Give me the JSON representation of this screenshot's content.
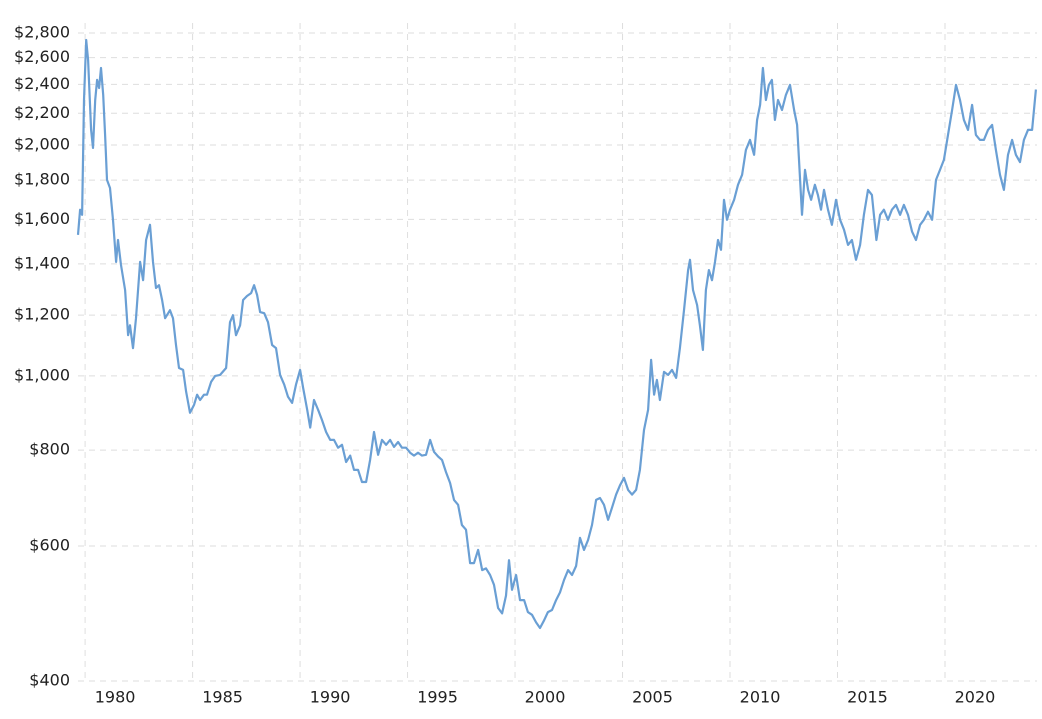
{
  "chart_data": {
    "type": "line",
    "log_y": true,
    "grid": true,
    "xlim": [
      1979.67,
      2024.28
    ],
    "xticks": [
      1980,
      1985,
      1990,
      1995,
      2000,
      2005,
      2010,
      2015,
      2020
    ],
    "ylim": [
      400,
      2800
    ],
    "yticks": [
      {
        "value": 400,
        "label": "$400"
      },
      {
        "value": 600,
        "label": "$600"
      },
      {
        "value": 800,
        "label": "$800"
      },
      {
        "value": 1000,
        "label": "$1,000"
      },
      {
        "value": 1200,
        "label": "$1,200"
      },
      {
        "value": 1400,
        "label": "$1,400"
      },
      {
        "value": 1600,
        "label": "$1,600"
      },
      {
        "value": 1800,
        "label": "$1,800"
      },
      {
        "value": 2000,
        "label": "$2,000"
      },
      {
        "value": 2200,
        "label": "$2,200"
      },
      {
        "value": 2400,
        "label": "$2,400"
      },
      {
        "value": 2600,
        "label": "$2,600"
      },
      {
        "value": 2800,
        "label": "$2,800"
      }
    ],
    "x": [
      1979.67,
      1979.77,
      1979.86,
      1979.95,
      1980.05,
      1980.14,
      1980.28,
      1980.37,
      1980.47,
      1980.56,
      1980.65,
      1980.74,
      1980.84,
      1980.93,
      1981.02,
      1981.16,
      1981.3,
      1981.44,
      1981.53,
      1981.67,
      1981.86,
      1982.0,
      1982.09,
      1982.23,
      1982.37,
      1982.56,
      1982.7,
      1982.84,
      1983.02,
      1983.16,
      1983.3,
      1983.44,
      1983.58,
      1983.72,
      1983.95,
      1984.09,
      1984.23,
      1984.37,
      1984.56,
      1984.7,
      1984.88,
      1985.07,
      1985.21,
      1985.35,
      1985.53,
      1985.67,
      1985.86,
      1986.05,
      1986.28,
      1986.56,
      1986.74,
      1986.88,
      1987.02,
      1987.21,
      1987.35,
      1987.53,
      1987.72,
      1987.86,
      1988.0,
      1988.14,
      1988.33,
      1988.51,
      1988.7,
      1988.88,
      1989.07,
      1989.26,
      1989.44,
      1989.63,
      1989.81,
      1990.0,
      1990.14,
      1990.33,
      1990.47,
      1990.65,
      1990.84,
      1991.02,
      1991.21,
      1991.4,
      1991.58,
      1991.77,
      1991.95,
      1992.14,
      1992.33,
      1992.51,
      1992.7,
      1992.88,
      1993.07,
      1993.26,
      1993.44,
      1993.63,
      1993.81,
      1994.0,
      1994.19,
      1994.37,
      1994.56,
      1994.74,
      1994.93,
      1995.12,
      1995.3,
      1995.49,
      1995.67,
      1995.86,
      1996.05,
      1996.23,
      1996.42,
      1996.6,
      1996.79,
      1996.98,
      1997.16,
      1997.35,
      1997.53,
      1997.72,
      1997.91,
      1998.09,
      1998.28,
      1998.47,
      1998.65,
      1998.84,
      1999.02,
      1999.21,
      1999.4,
      1999.58,
      1999.72,
      1999.86,
      2000.05,
      2000.23,
      2000.42,
      2000.6,
      2000.79,
      2000.98,
      2001.16,
      2001.35,
      2001.53,
      2001.72,
      2001.91,
      2002.09,
      2002.28,
      2002.47,
      2002.65,
      2002.84,
      2003.02,
      2003.21,
      2003.4,
      2003.58,
      2003.77,
      2003.95,
      2004.14,
      2004.33,
      2004.51,
      2004.7,
      2004.88,
      2005.07,
      2005.26,
      2005.44,
      2005.63,
      2005.81,
      2006.0,
      2006.19,
      2006.33,
      2006.47,
      2006.6,
      2006.74,
      2006.93,
      2007.12,
      2007.3,
      2007.49,
      2007.67,
      2007.86,
      2008.05,
      2008.14,
      2008.28,
      2008.47,
      2008.6,
      2008.74,
      2008.88,
      2009.02,
      2009.16,
      2009.3,
      2009.44,
      2009.58,
      2009.72,
      2009.86,
      2010.0,
      2010.19,
      2010.37,
      2010.56,
      2010.74,
      2010.93,
      2011.12,
      2011.26,
      2011.4,
      2011.53,
      2011.67,
      2011.81,
      2011.95,
      2012.09,
      2012.23,
      2012.42,
      2012.6,
      2012.79,
      2012.98,
      2013.12,
      2013.26,
      2013.35,
      2013.49,
      2013.63,
      2013.77,
      2013.95,
      2014.09,
      2014.23,
      2014.37,
      2014.56,
      2014.74,
      2014.93,
      2015.12,
      2015.3,
      2015.49,
      2015.67,
      2015.86,
      2016.05,
      2016.23,
      2016.42,
      2016.6,
      2016.81,
      2016.98,
      2017.16,
      2017.35,
      2017.53,
      2017.72,
      2017.91,
      2018.09,
      2018.28,
      2018.47,
      2018.65,
      2018.84,
      2019.02,
      2019.21,
      2019.4,
      2019.58,
      2019.77,
      2019.95,
      2020.14,
      2020.33,
      2020.51,
      2020.7,
      2020.88,
      2021.07,
      2021.26,
      2021.44,
      2021.63,
      2021.81,
      2022.0,
      2022.19,
      2022.37,
      2022.56,
      2022.74,
      2022.93,
      2023.12,
      2023.3,
      2023.49,
      2023.67,
      2023.86,
      2024.05,
      2024.23
    ],
    "series": [
      {
        "color": "#6a9fd4",
        "values": [
          1527,
          1647,
          1622,
          2290,
          2742,
          2582,
          2093,
          1983,
          2290,
          2432,
          2374,
          2521,
          2325,
          2062,
          1801,
          1758,
          1598,
          1408,
          1504,
          1395,
          1294,
          1130,
          1164,
          1087,
          1189,
          1408,
          1333,
          1504,
          1574,
          1408,
          1302,
          1313,
          1256,
          1189,
          1218,
          1189,
          1097,
          1024,
          1018,
          954,
          895,
          917,
          945,
          930,
          945,
          945,
          982,
          1000,
          1003,
          1024,
          1175,
          1200,
          1130,
          1164,
          1256,
          1271,
          1282,
          1313,
          1275,
          1211,
          1207,
          1175,
          1097,
          1087,
          1003,
          974,
          939,
          922,
          974,
          1018,
          965,
          903,
          856,
          930,
          903,
          876,
          845,
          825,
          825,
          806,
          813,
          772,
          787,
          754,
          754,
          727,
          727,
          777,
          845,
          789,
          825,
          813,
          825,
          808,
          820,
          806,
          806,
          794,
          787,
          794,
          787,
          789,
          825,
          796,
          785,
          777,
          749,
          725,
          689,
          679,
          639,
          630,
          570,
          570,
          593,
          558,
          561,
          550,
          534,
          498,
          490,
          517,
          575,
          526,
          550,
          510,
          510,
          492,
          488,
          477,
          469,
          480,
          492,
          495,
          510,
          522,
          542,
          558,
          550,
          565,
          615,
          593,
          611,
          639,
          689,
          693,
          679,
          649,
          673,
          700,
          720,
          736,
          710,
          700,
          710,
          754,
          850,
          903,
          1049,
          945,
          988,
          930,
          1012,
          1003,
          1018,
          994,
          1087,
          1218,
          1374,
          1417,
          1294,
          1237,
          1164,
          1081,
          1294,
          1374,
          1333,
          1408,
          1504,
          1460,
          1697,
          1598,
          1647,
          1697,
          1775,
          1829,
          1971,
          2031,
          1942,
          2157,
          2256,
          2521,
          2290,
          2396,
          2432,
          2157,
          2290,
          2222,
          2325,
          2396,
          2222,
          2125,
          1801,
          1622,
          1856,
          1748,
          1697,
          1775,
          1722,
          1647,
          1748,
          1647,
          1574,
          1697,
          1598,
          1551,
          1482,
          1504,
          1417,
          1482,
          1622,
          1748,
          1722,
          1504,
          1622,
          1647,
          1598,
          1647,
          1671,
          1622,
          1671,
          1622,
          1542,
          1504,
          1574,
          1598,
          1637,
          1598,
          1801,
          1856,
          1913,
          2062,
          2222,
          2396,
          2290,
          2157,
          2093,
          2256,
          2062,
          2031,
          2031,
          2093,
          2125,
          1971,
          1829,
          1748,
          1942,
          2031,
          1942,
          1900,
          2031,
          2093,
          2093,
          2363
        ]
      }
    ]
  }
}
